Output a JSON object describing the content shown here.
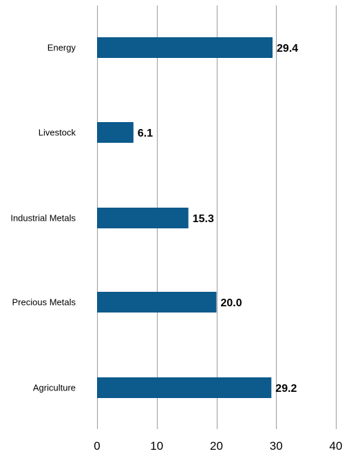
{
  "chart_data": {
    "type": "bar",
    "orientation": "horizontal",
    "categories": [
      "Energy",
      "Livestock",
      "Industrial Metals",
      "Precious Metals",
      "Agriculture"
    ],
    "values": [
      29.4,
      6.1,
      15.3,
      20.0,
      29.2
    ],
    "value_labels": [
      "29.4",
      "6.1",
      "15.3",
      "20.0",
      "29.2"
    ],
    "xlim": [
      0,
      40
    ],
    "x_ticks": [
      0,
      10,
      20,
      30,
      40
    ],
    "x_tick_labels": [
      "0",
      "10",
      "20",
      "30",
      "40"
    ],
    "title": "",
    "xlabel": "",
    "ylabel": "",
    "grid": "vertical",
    "legend": "none",
    "bar_color": "#0d5a8c"
  }
}
